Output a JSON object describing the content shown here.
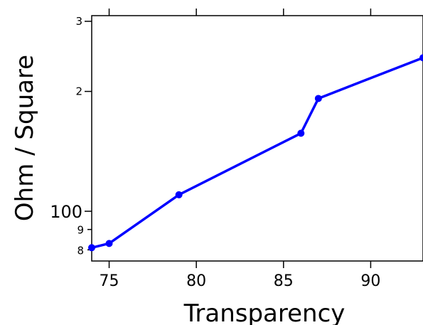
{
  "chart_data": {
    "type": "line",
    "xlabel": "Transparency",
    "ylabel": "Ohm / Square",
    "xlim": [
      74,
      93
    ],
    "ylim": [
      75,
      310
    ],
    "y_scale": "log",
    "x_ticks": [
      75,
      80,
      85,
      90
    ],
    "y_major_ticks": [
      100,
      200,
      300
    ],
    "y_tick_labels": [
      "100",
      "2",
      "3"
    ],
    "y_minor_ticks": [
      80,
      90
    ],
    "y_minor_labels": [
      "8",
      "9"
    ],
    "series": [
      {
        "x": [
          74,
          75,
          79,
          86,
          87,
          93
        ],
        "y": [
          81,
          83,
          110,
          157,
          192,
          243
        ],
        "color": "#0000ff"
      }
    ],
    "grid": false,
    "legend": "none"
  }
}
